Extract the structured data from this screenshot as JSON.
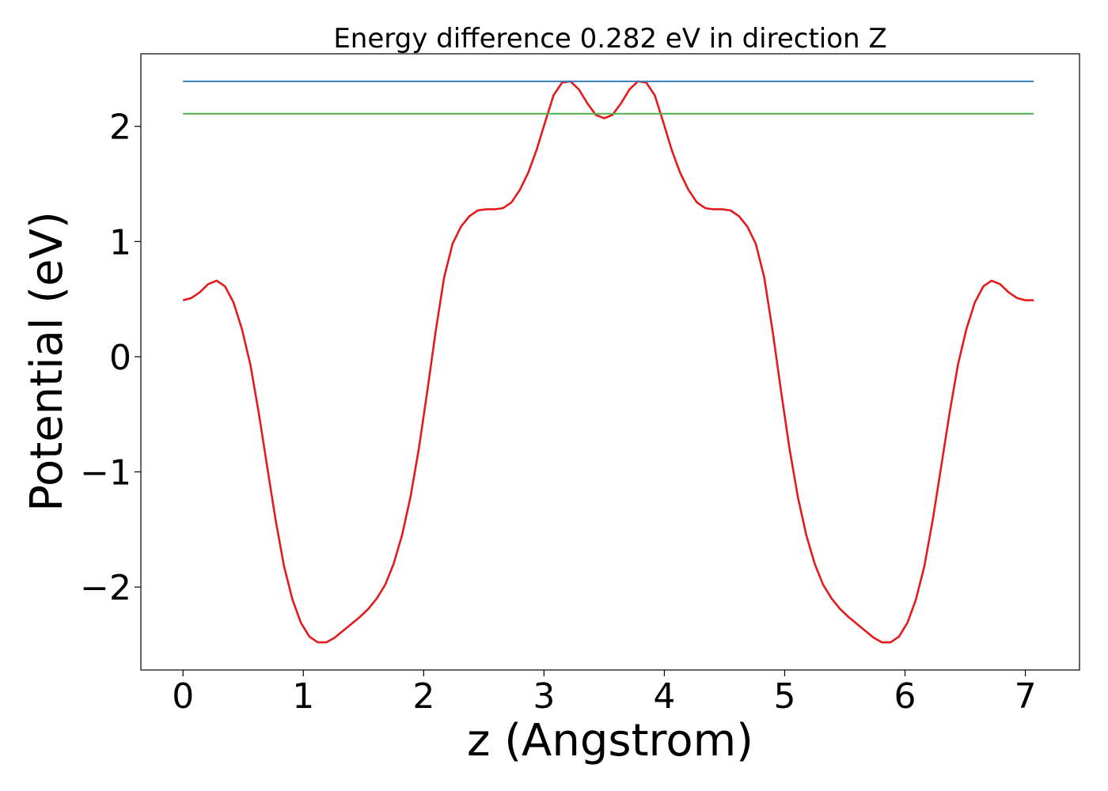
{
  "chart_data": {
    "type": "line",
    "title": "Energy difference 0.282 eV in direction Z",
    "xlabel": "z (Angstrom)",
    "ylabel": "Potential (eV)",
    "xlim": [
      -0.35,
      7.45
    ],
    "ylim": [
      -2.72,
      2.63
    ],
    "xticks": [
      0,
      1,
      2,
      3,
      4,
      5,
      6,
      7
    ],
    "xtick_labels": [
      "0",
      "1",
      "2",
      "3",
      "4",
      "5",
      "6",
      "7"
    ],
    "yticks": [
      -2,
      -1,
      0,
      1,
      2
    ],
    "ytick_labels": [
      "−2",
      "−1",
      "0",
      "1",
      "2"
    ],
    "grid": false,
    "legend": "none",
    "series": [
      {
        "color": "#e41a1c",
        "x": [
          0.0,
          0.07,
          0.14,
          0.21,
          0.28,
          0.35,
          0.42,
          0.49,
          0.56,
          0.63,
          0.7,
          0.77,
          0.84,
          0.91,
          0.98,
          1.05,
          1.12,
          1.19,
          1.26,
          1.33,
          1.4,
          1.47,
          1.54,
          1.61,
          1.68,
          1.75,
          1.82,
          1.89,
          1.96,
          2.03,
          2.1,
          2.17,
          2.24,
          2.31,
          2.38,
          2.45,
          2.52,
          2.59,
          2.66,
          2.73,
          2.8,
          2.87,
          2.94,
          3.01,
          3.08,
          3.15,
          3.22,
          3.29,
          3.36,
          3.43,
          3.5,
          3.57,
          3.64,
          3.71,
          3.78,
          3.85,
          3.92,
          3.99,
          4.06,
          4.13,
          4.2,
          4.27,
          4.34,
          4.41,
          4.48,
          4.55,
          4.62,
          4.69,
          4.76,
          4.83,
          4.9,
          4.97,
          5.04,
          5.11,
          5.18,
          5.25,
          5.32,
          5.39,
          5.46,
          5.53,
          5.6,
          5.67,
          5.74,
          5.81,
          5.88,
          5.95,
          6.02,
          6.09,
          6.16,
          6.23,
          6.3,
          6.37,
          6.44,
          6.51,
          6.58,
          6.65,
          6.72,
          6.79,
          6.86,
          6.93,
          7.0,
          7.07
        ],
        "y": [
          0.49,
          0.51,
          0.56,
          0.63,
          0.66,
          0.61,
          0.47,
          0.24,
          -0.07,
          -0.49,
          -0.96,
          -1.42,
          -1.82,
          -2.11,
          -2.31,
          -2.43,
          -2.48,
          -2.48,
          -2.44,
          -2.38,
          -2.32,
          -2.26,
          -2.19,
          -2.1,
          -1.98,
          -1.8,
          -1.55,
          -1.22,
          -0.8,
          -0.3,
          0.22,
          0.69,
          0.98,
          1.13,
          1.22,
          1.27,
          1.28,
          1.28,
          1.29,
          1.34,
          1.45,
          1.6,
          1.8,
          2.04,
          2.27,
          2.38,
          2.39,
          2.32,
          2.2,
          2.1,
          2.07,
          2.1,
          2.2,
          2.32,
          2.39,
          2.38,
          2.27,
          2.04,
          1.8,
          1.6,
          1.45,
          1.34,
          1.29,
          1.28,
          1.28,
          1.27,
          1.22,
          1.13,
          0.98,
          0.69,
          0.22,
          -0.3,
          -0.8,
          -1.22,
          -1.55,
          -1.8,
          -1.98,
          -2.1,
          -2.19,
          -2.26,
          -2.32,
          -2.38,
          -2.44,
          -2.48,
          -2.48,
          -2.43,
          -2.31,
          -2.11,
          -1.82,
          -1.42,
          -0.96,
          -0.49,
          -0.07,
          0.24,
          0.47,
          0.61,
          0.66,
          0.63,
          0.56,
          0.51,
          0.49,
          0.49
        ]
      },
      {
        "color": "#377eb8",
        "x": [
          0.0,
          7.07
        ],
        "y": [
          2.39,
          2.39
        ]
      },
      {
        "color": "#4daf4a",
        "x": [
          0.0,
          7.07
        ],
        "y": [
          2.11,
          2.11
        ]
      }
    ]
  }
}
